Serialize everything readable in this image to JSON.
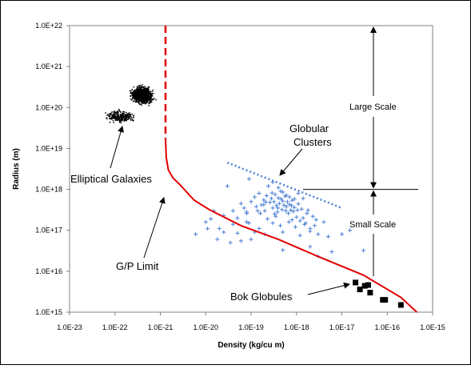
{
  "chart_data": {
    "type": "scatter",
    "xlabel": "Density (kg/cu m)",
    "ylabel": "Radius (m)",
    "xscale": "log",
    "yscale": "log",
    "xlim": [
      1e-23,
      1e-15
    ],
    "ylim": [
      1000000000000000.0,
      1e+22
    ],
    "x_ticks": [
      "1.0E-23",
      "1.0E-22",
      "1.0E-21",
      "1.0E-20",
      "1.0E-19",
      "1.0E-18",
      "1.0E-17",
      "1.0E-16",
      "1.0E-15"
    ],
    "y_ticks": [
      "1.0E+15",
      "1.0E+16",
      "1.0E+17",
      "1.0E+18",
      "1.0E+19",
      "1.0E+20",
      "1.0E+21",
      "1.0E+22"
    ],
    "grid": false,
    "series": [
      {
        "name": "Elliptical Galaxies",
        "marker": "dot",
        "color": "#000000",
        "cluster": {
          "center_x": 4e-22,
          "center_y": 2e+20,
          "spread_dex_x": 0.18,
          "spread_dex_y": 0.15,
          "count": 1500
        },
        "tail": {
          "center_x": 1.3e-22,
          "center_y": 6e+19,
          "spread_dex_x": 0.25,
          "spread_dex_y": 0.12,
          "count": 250
        }
      },
      {
        "name": "Globular Clusters",
        "marker": "plus",
        "color": "#4a7fd6",
        "points": [
          [
            1e-20,
            1.6e+17
          ],
          [
            1.3e-20,
            1.9e+17
          ],
          [
            1.1e-20,
            1.1e+17
          ],
          [
            2.5e-20,
            2.3e+17
          ],
          [
            3e-20,
            1.2e+18
          ],
          [
            4e-20,
            3e+17
          ],
          [
            5e-20,
            2e+17
          ],
          [
            6e-20,
            4.5e+17
          ],
          [
            7e-20,
            3.5e+17
          ],
          [
            8e-20,
            2.8e+17
          ],
          [
            9e-20,
            1.5e+17
          ],
          [
            1e-19,
            5e+17
          ],
          [
            1.2e-19,
            6.5e+17
          ],
          [
            1.3e-19,
            3.8e+17
          ],
          [
            1.5e-19,
            8e+17
          ],
          [
            1.7e-19,
            4.2e+17
          ],
          [
            1.9e-19,
            5.5e+17
          ],
          [
            2e-19,
            3e+17
          ],
          [
            2.2e-19,
            7e+17
          ],
          [
            2.4e-19,
            1.2e+18
          ],
          [
            2.6e-19,
            4.8e+17
          ],
          [
            2.8e-19,
            6e+17
          ],
          [
            3e-19,
            3.5e+17
          ],
          [
            3.2e-19,
            5e+17
          ],
          [
            3.4e-19,
            7.5e+17
          ],
          [
            3.6e-19,
            4e+17
          ],
          [
            3.8e-19,
            2.8e+17
          ],
          [
            4e-19,
            6.2e+17
          ],
          [
            4.2e-19,
            4.5e+17
          ],
          [
            4.5e-19,
            9e+17
          ],
          [
            4.8e-19,
            3.2e+17
          ],
          [
            5e-19,
            5.2e+17
          ],
          [
            5.3e-19,
            4.1e+17
          ],
          [
            5.6e-19,
            6.8e+17
          ],
          [
            6e-19,
            3.8e+17
          ],
          [
            6.3e-19,
            5e+17
          ],
          [
            6.6e-19,
            2.6e+17
          ],
          [
            7e-19,
            4.3e+17
          ],
          [
            7.5e-19,
            3.1e+17
          ],
          [
            8e-19,
            5.4e+17
          ],
          [
            8.5e-19,
            2.9e+17
          ],
          [
            9e-19,
            3.6e+17
          ],
          [
            1e-18,
            2.1e+17
          ],
          [
            1.1e-18,
            4.4e+17
          ],
          [
            1.2e-18,
            1.7e+17
          ],
          [
            1.3e-18,
            3.3e+17
          ],
          [
            1.5e-18,
            1.4e+17
          ],
          [
            1.7e-18,
            2.6e+17
          ],
          [
            2e-18,
            1.1e+17
          ],
          [
            2.3e-18,
            2.2e+17
          ],
          [
            3e-19,
            1.5e+18
          ],
          [
            4e-19,
            1.1e+18
          ],
          [
            5e-19,
            8.5e+17
          ],
          [
            6e-19,
            7.2e+17
          ],
          [
            7e-19,
            6.5e+17
          ],
          [
            9e-19,
            5.8e+17
          ],
          [
            1.1e-18,
            8e+17
          ],
          [
            1.4e-18,
            6e+17
          ],
          [
            1.8e-18,
            3.1e+17
          ],
          [
            2.5e-18,
            1.3e+17
          ],
          [
            1.5e-19,
            1.1e+17
          ],
          [
            2e-19,
            8e+16
          ],
          [
            3e-19,
            1.5e+17
          ],
          [
            5e-19,
            9e+16
          ],
          [
            8e-19,
            1.8e+17
          ],
          [
            1.2e-18,
            7.5e+16
          ],
          [
            2e-18,
            9.5e+16
          ],
          [
            3e-18,
            8e+16
          ],
          [
            5e-18,
            7e+16
          ],
          [
            1e-17,
            8e+16
          ],
          [
            3e-17,
            3.2e+16
          ],
          [
            9e-20,
            1.8e+18
          ],
          [
            1.5e-20,
            3e+17
          ],
          [
            2e-20,
            1.1e+17
          ],
          [
            6e-21,
            8e+16
          ],
          [
            1.8e-20,
            6e+16
          ],
          [
            2.5e-20,
            9e+16
          ],
          [
            3.5e-20,
            5e+16
          ],
          [
            5e-20,
            8.5e+16
          ],
          [
            1e-19,
            6e+16
          ],
          [
            8e-20,
            1.6e+17
          ],
          [
            1.6e-19,
            2.6e+17
          ],
          [
            2.3e-19,
            1.9e+17
          ],
          [
            3.5e-19,
            2.2e+17
          ],
          [
            4.4e-19,
            1.3e+17
          ],
          [
            6.8e-19,
            1.6e+17
          ],
          [
            9.5e-19,
            1.2e+17
          ],
          [
            1.4e-18,
            2e+17
          ],
          [
            5e-19,
            3.3e+16
          ],
          [
            2e-18,
            4e+16
          ],
          [
            3e-18,
            2.3e+16
          ],
          [
            6e-18,
            3e+16
          ],
          [
            1.2e-19,
            9e+16
          ],
          [
            1.9e-19,
            4.2e+17
          ],
          [
            2.9e-19,
            8.2e+17
          ],
          [
            3.3e-19,
            2.5e+17
          ],
          [
            4.6e-19,
            5.8e+17
          ],
          [
            5.8e-19,
            3e+17
          ],
          [
            7.8e-19,
            4e+17
          ],
          [
            1.05e-18,
            3.1e+17
          ],
          [
            1.6e-18,
            1.5e+17
          ],
          [
            2.7e-18,
            1.8e+17
          ],
          [
            4e-18,
            1.6e+17
          ],
          [
            1.5e-17,
            1e+17
          ],
          [
            8e-20,
            2.6e+17
          ],
          [
            6e-20,
            5.5e+16
          ],
          [
            4e-20,
            1.4e+17
          ],
          [
            1.4e-19,
            3e+17
          ],
          [
            2.1e-19,
            4.9e+17
          ],
          [
            3.9e-19,
            3.5e+17
          ]
        ]
      },
      {
        "name": "Bok Globules",
        "marker": "square",
        "color": "#000000",
        "points": [
          [
            2e-17,
            5300000000000000.0
          ],
          [
            2.5e-17,
            3600000000000000.0
          ],
          [
            3.2e-17,
            4400000000000000.0
          ],
          [
            3.8e-17,
            4600000000000000.0
          ],
          [
            4.2e-17,
            3000000000000000.0
          ],
          [
            8e-17,
            2000000000000000.0
          ],
          [
            9e-17,
            2000000000000000.0
          ],
          [
            2e-16,
            1500000000000000.0
          ]
        ]
      },
      {
        "name": "G/P Limit",
        "style": "line",
        "color": "#e00000",
        "dashed_segment": [
          [
            1.3e-21,
            1e+22
          ],
          [
            1.3e-21,
            1.7e+19
          ]
        ],
        "solid_segment": [
          [
            1.3e-21,
            1.7e+19
          ],
          [
            1.35e-21,
            6e+18
          ],
          [
            1.5e-21,
            3e+18
          ],
          [
            1.9e-21,
            1.9e+18
          ],
          [
            2.7e-21,
            1.3e+18
          ],
          [
            5.5e-21,
            5.5e+17
          ],
          [
            1.2e-20,
            3.2e+17
          ],
          [
            6e-20,
            1.3e+17
          ],
          [
            4e-19,
            6e+16
          ],
          [
            3e-18,
            2.3e+16
          ],
          [
            3e-17,
            8000000000000000.0
          ],
          [
            2e-16,
            2300000000000000.0
          ],
          [
            4.5e-16,
            1000000000000000.0
          ]
        ]
      }
    ],
    "guide_line": {
      "style": "dotted",
      "color": "#4a7fd6",
      "from": [
        3e-20,
        4.5e+18
      ],
      "to": [
        1e-17,
        3.5e+17
      ]
    },
    "scale_divider": {
      "y": 1e+18,
      "x_from": 1.4e-18,
      "x_to": 1e-15
    }
  },
  "annotations": {
    "elliptical": "Elliptical Galaxies",
    "gp_limit": "G/P Limit",
    "globular_line1": "Globular",
    "globular_line2": "Clusters",
    "bok": "Bok Globules",
    "large_scale": "Large Scale",
    "small_scale": "Small Scale"
  }
}
